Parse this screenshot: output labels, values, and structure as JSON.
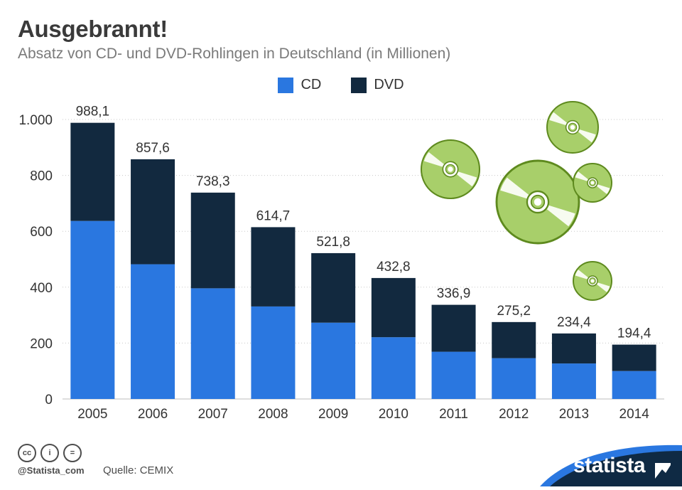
{
  "header": {
    "title": "Ausgebrannt!",
    "subtitle": "Absatz von CD- und DVD-Rohlingen in Deutschland (in Millionen)"
  },
  "legend": {
    "cd_label": "CD",
    "dvd_label": "DVD"
  },
  "footer": {
    "cc_icons": [
      "cc-icon",
      "by-icon",
      "nd-icon"
    ],
    "cc_text": "cc",
    "by_text": "i",
    "nd_text": "=",
    "handle": "@Statista_com",
    "source": "Quelle: CEMIX",
    "brand": "statista"
  },
  "colors": {
    "cd": "#2a77e0",
    "dvd": "#12293f",
    "disc": "#a8cf6a",
    "disc_outline": "#5e8a1e",
    "brand_bg": "#0f2a44",
    "brand_swoosh": "#2a77e0"
  },
  "chart_data": {
    "type": "bar",
    "stacked": true,
    "categories": [
      "2005",
      "2006",
      "2007",
      "2008",
      "2009",
      "2010",
      "2011",
      "2012",
      "2013",
      "2014"
    ],
    "series": [
      {
        "name": "CD",
        "values": [
          637,
          482,
          396,
          331,
          273,
          221,
          169,
          146,
          127,
          100
        ]
      },
      {
        "name": "DVD",
        "values": [
          351.1,
          375.6,
          342.3,
          283.7,
          248.8,
          211.8,
          167.9,
          129.2,
          107.4,
          94.4
        ]
      }
    ],
    "totals": [
      988.1,
      857.6,
      738.3,
      614.7,
      521.8,
      432.8,
      336.9,
      275.2,
      234.4,
      194.4
    ],
    "total_labels": [
      "988,1",
      "857,6",
      "738,3",
      "614,7",
      "521,8",
      "432,8",
      "336,9",
      "275,2",
      "234,4",
      "194,4"
    ],
    "yticks": [
      0,
      200,
      400,
      600,
      800,
      1000
    ],
    "ytick_labels": [
      "0",
      "200",
      "400",
      "600",
      "800",
      "1.000"
    ],
    "ylim": [
      0,
      1000
    ],
    "legend_position": "top-center",
    "grid": true
  }
}
